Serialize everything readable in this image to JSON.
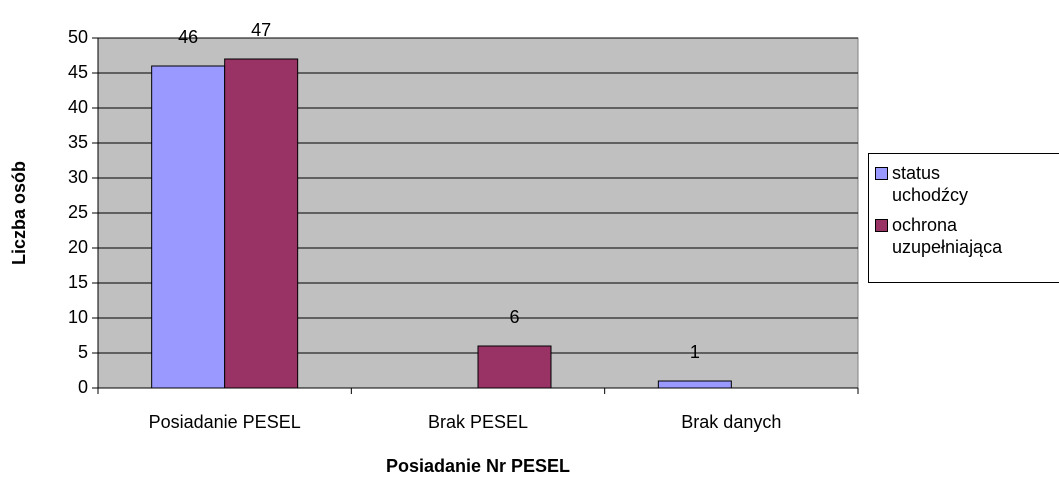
{
  "chart_data": {
    "type": "bar",
    "x_label": "Posiadanie Nr PESEL",
    "y_label": "Liczba osób",
    "categories": [
      "Posiadanie PESEL",
      "Brak PESEL",
      "Brak danych"
    ],
    "series": [
      {
        "name": "status uchodźcy",
        "color": "#9999ff",
        "values": [
          46,
          null,
          1
        ]
      },
      {
        "name": "ochrona uzupełniająca",
        "color": "#993366",
        "values": [
          47,
          6,
          null
        ]
      }
    ],
    "ylim": [
      0,
      50
    ],
    "yticks": [
      0,
      5,
      10,
      15,
      20,
      25,
      30,
      35,
      40,
      45,
      50
    ],
    "grid": true,
    "plot_background": "#c0c0c0",
    "legend": "right"
  }
}
